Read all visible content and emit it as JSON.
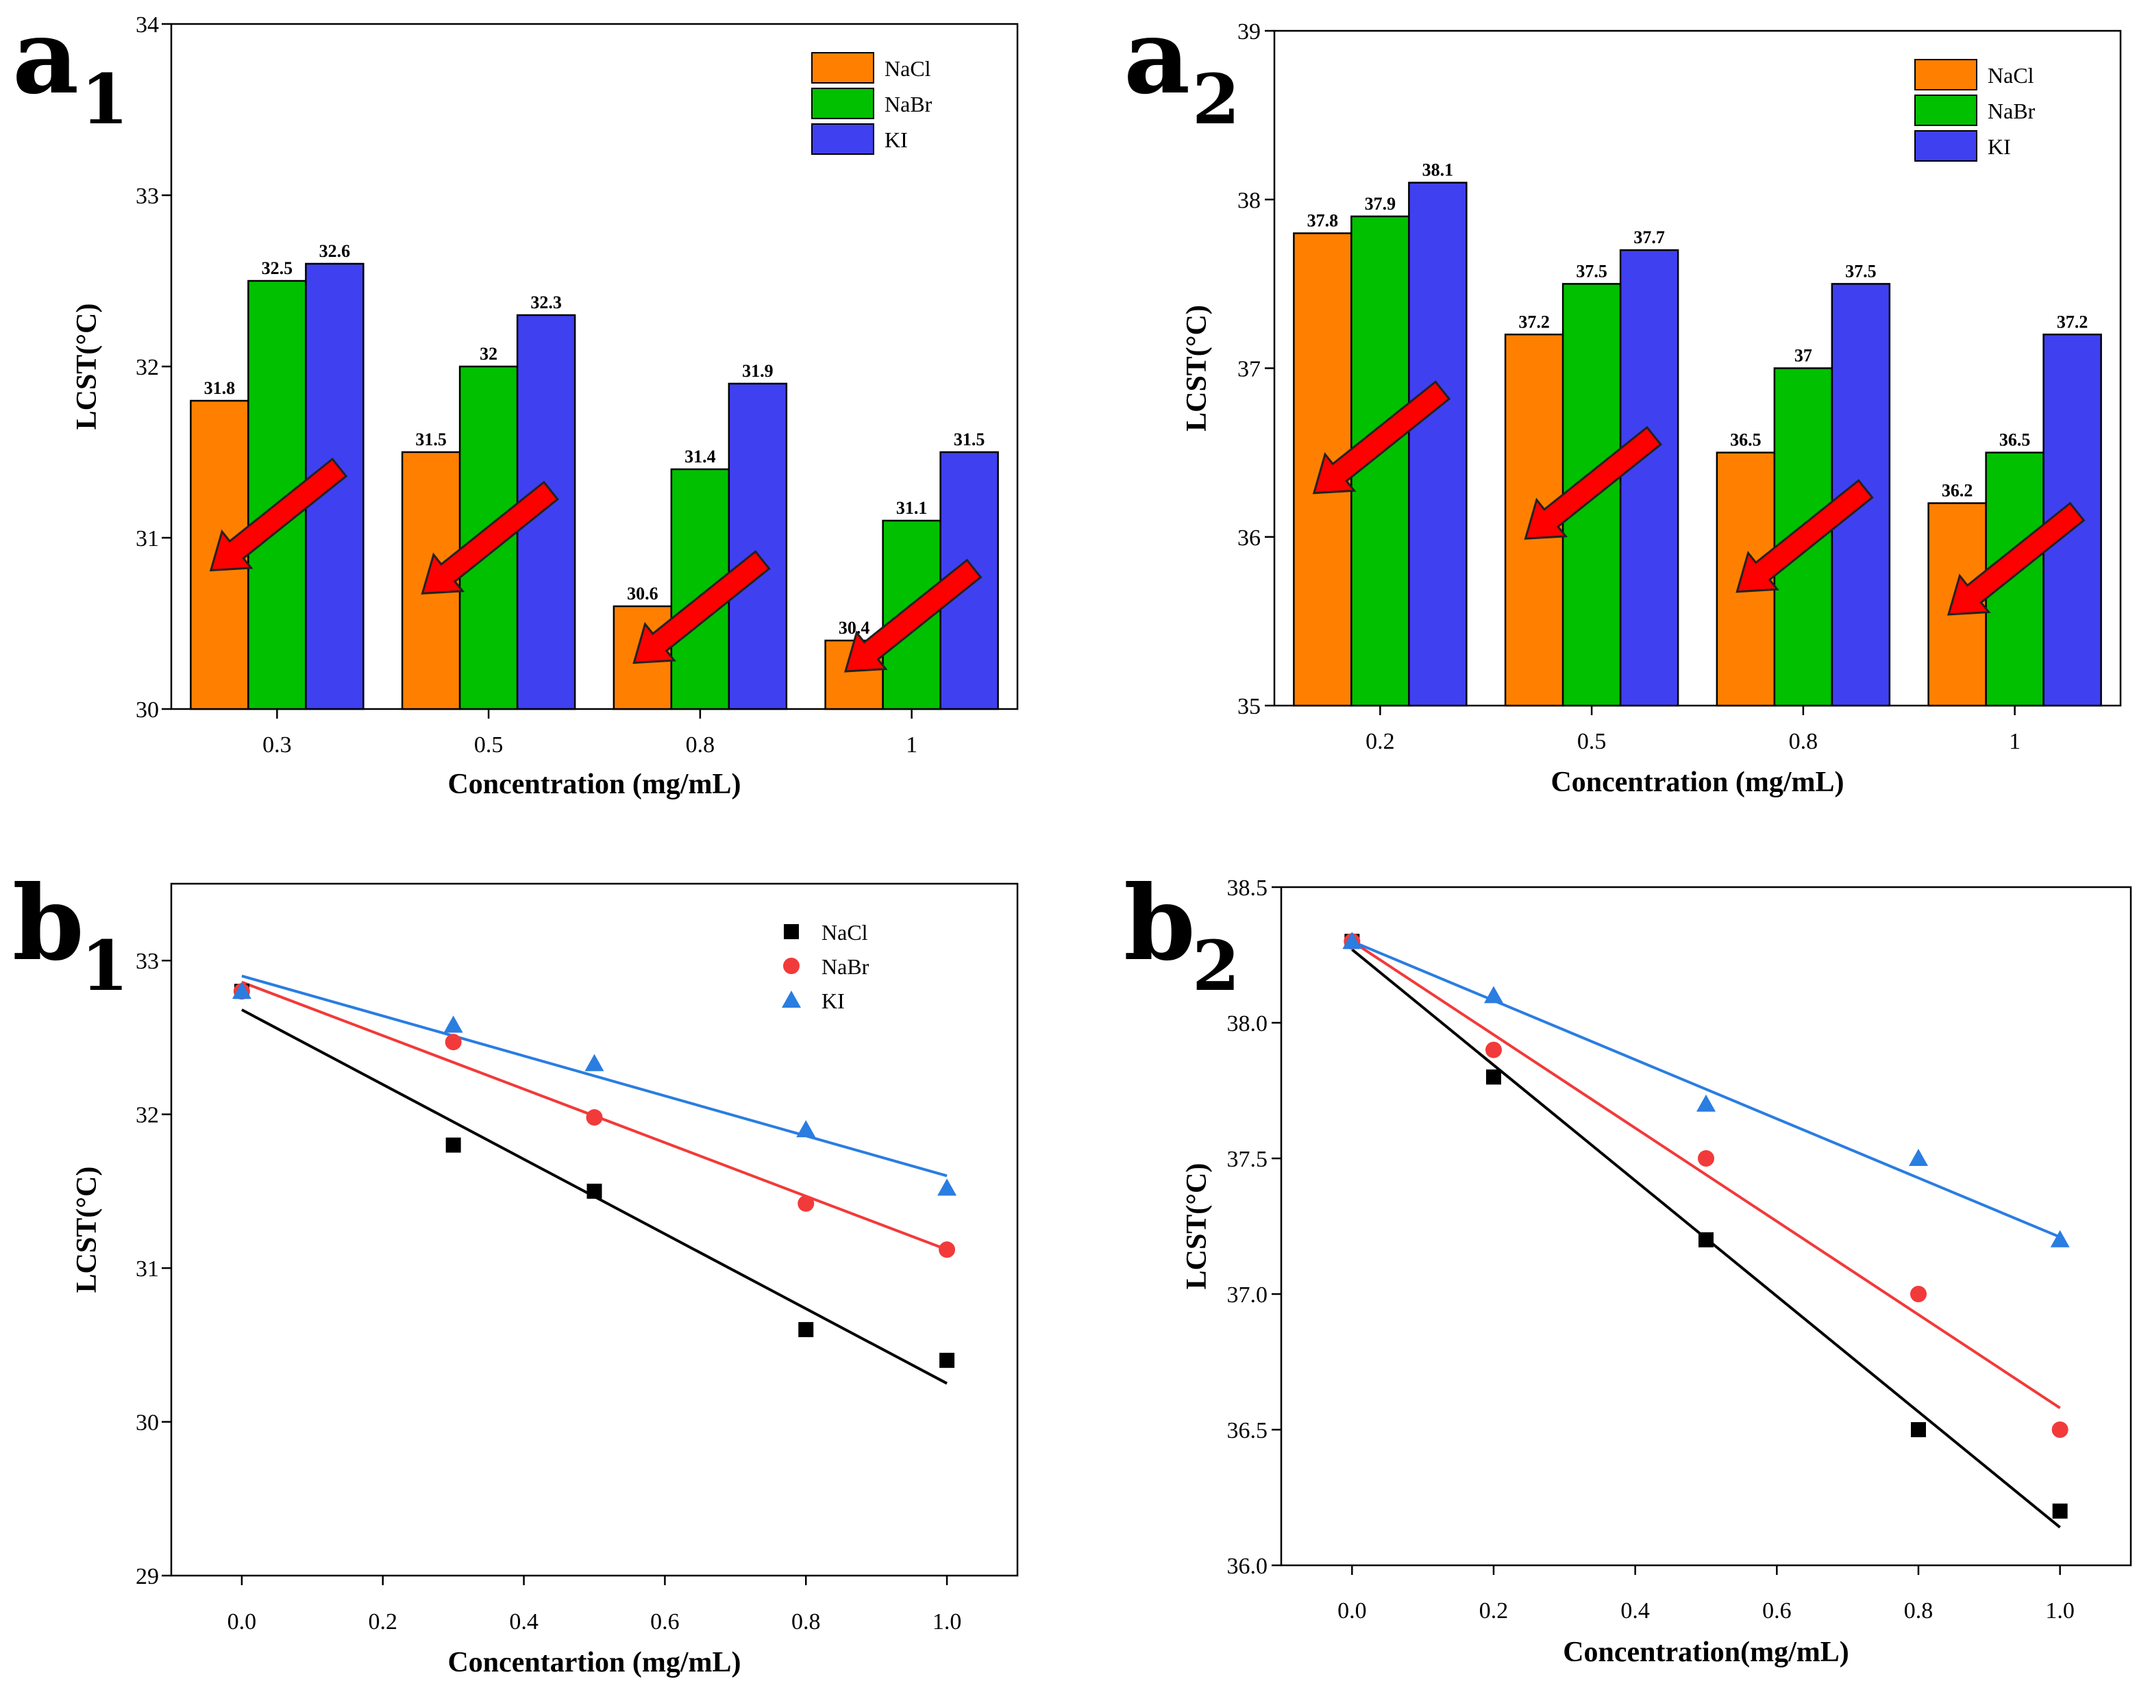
{
  "colors": {
    "NaCl_bar": "#ff8000",
    "NaBr_bar": "#00c000",
    "KI_bar": "#3f40f0",
    "NaCl_line": "#000000",
    "NaBr_line": "#f23a3a",
    "KI_line": "#2a7de1",
    "arrow_fill": "#ff0000",
    "arrow_stroke": "#222222"
  },
  "icons": {
    "arrow": "down-left-arrow-icon",
    "NaCl_marker": "square",
    "NaBr_marker": "circle",
    "KI_marker": "triangle"
  },
  "chart_data": [
    {
      "panel": "a1",
      "panel_letter": "a",
      "panel_subscript": "1",
      "type": "bar",
      "categories": [
        "0.3",
        "0.5",
        "0.8",
        "1"
      ],
      "series": [
        {
          "name": "NaCl",
          "values": [
            31.8,
            31.5,
            30.6,
            30.4
          ],
          "labels": [
            "31.8",
            "31.5",
            "30.6",
            "30.4"
          ]
        },
        {
          "name": "NaBr",
          "values": [
            32.5,
            32.0,
            31.4,
            31.1
          ],
          "labels": [
            "32.5",
            "32",
            "31.4",
            "31.1"
          ]
        },
        {
          "name": "KI",
          "values": [
            32.6,
            32.3,
            31.9,
            31.5
          ],
          "labels": [
            "32.6",
            "32.3",
            "31.9",
            "31.5"
          ]
        }
      ],
      "xlabel": "Concentration (mg/mL)",
      "ylabel": "LCST(°C)",
      "ylim": [
        30,
        34
      ],
      "yticks": [
        "30",
        "31",
        "32",
        "33",
        "34"
      ],
      "legend_position": "top-right",
      "annotations": "red arrows pointing down-left at each concentration group"
    },
    {
      "panel": "a2",
      "panel_letter": "a",
      "panel_subscript": "2",
      "type": "bar",
      "categories": [
        "0.2",
        "0.5",
        "0.8",
        "1"
      ],
      "series": [
        {
          "name": "NaCl",
          "values": [
            37.8,
            37.2,
            36.5,
            36.2
          ],
          "labels": [
            "37.8",
            "37.2",
            "36.5",
            "36.2"
          ]
        },
        {
          "name": "NaBr",
          "values": [
            37.9,
            37.5,
            37.0,
            36.5
          ],
          "labels": [
            "37.9",
            "37.5",
            "37",
            "36.5"
          ]
        },
        {
          "name": "KI",
          "values": [
            38.1,
            37.7,
            37.5,
            37.2
          ],
          "labels": [
            "38.1",
            "37.7",
            "37.5",
            "37.2"
          ]
        }
      ],
      "xlabel": "Concentration (mg/mL)",
      "ylabel": "LCST(°C)",
      "ylim": [
        35,
        39
      ],
      "yticks": [
        "35",
        "36",
        "37",
        "38",
        "39"
      ],
      "legend_position": "top-right",
      "annotations": "red arrows pointing down-left at each concentration group"
    },
    {
      "panel": "b1",
      "panel_letter": "b",
      "panel_subscript": "1",
      "type": "scatter",
      "x": [
        0.0,
        0.3,
        0.5,
        0.8,
        1.0
      ],
      "series": [
        {
          "name": "NaCl",
          "marker": "square",
          "values": [
            32.8,
            31.8,
            31.5,
            30.6,
            30.4
          ],
          "fit": [
            [
              0.0,
              32.68
            ],
            [
              1.0,
              30.25
            ]
          ]
        },
        {
          "name": "NaBr",
          "marker": "circle",
          "values": [
            32.8,
            32.47,
            31.98,
            31.42,
            31.12
          ],
          "fit": [
            [
              0.0,
              32.86
            ],
            [
              1.0,
              31.12
            ]
          ]
        },
        {
          "name": "KI",
          "marker": "triangle",
          "values": [
            32.8,
            32.58,
            32.33,
            31.9,
            31.52
          ],
          "fit": [
            [
              0.0,
              32.9
            ],
            [
              1.0,
              31.6
            ]
          ]
        }
      ],
      "xlabel": "Concentartion (mg/mL)",
      "ylabel": "LCST(°C)",
      "xlim": [
        -0.1,
        1.1
      ],
      "ylim": [
        29,
        33.5
      ],
      "xticks": [
        "0.0",
        "0.2",
        "0.4",
        "0.6",
        "0.8",
        "1.0"
      ],
      "yticks": [
        "29",
        "30",
        "31",
        "32",
        "33"
      ],
      "legend_position": "top-right"
    },
    {
      "panel": "b2",
      "panel_letter": "b",
      "panel_subscript": "2",
      "type": "scatter",
      "x": [
        0.0,
        0.2,
        0.5,
        0.8,
        1.0
      ],
      "series": [
        {
          "name": "NaCl",
          "marker": "square",
          "values": [
            38.3,
            37.8,
            37.2,
            36.5,
            36.2
          ],
          "fit": [
            [
              0.0,
              38.27
            ],
            [
              1.0,
              36.14
            ]
          ]
        },
        {
          "name": "NaBr",
          "marker": "circle",
          "values": [
            38.3,
            37.9,
            37.5,
            37.0,
            36.5
          ],
          "fit": [
            [
              0.0,
              38.3
            ],
            [
              1.0,
              36.58
            ]
          ]
        },
        {
          "name": "KI",
          "marker": "triangle",
          "values": [
            38.3,
            38.1,
            37.7,
            37.5,
            37.2
          ],
          "fit": [
            [
              0.0,
              38.3
            ],
            [
              1.0,
              37.21
            ]
          ]
        }
      ],
      "xlabel": "Concentration(mg/mL)",
      "ylabel": "LCST(°C)",
      "xlim": [
        -0.1,
        1.1
      ],
      "ylim": [
        36.0,
        38.5
      ],
      "xticks": [
        "0.0",
        "0.2",
        "0.4",
        "0.6",
        "0.8",
        "1.0"
      ],
      "yticks": [
        "36.0",
        "36.5",
        "37.0",
        "37.5",
        "38.0",
        "38.5"
      ]
    }
  ]
}
